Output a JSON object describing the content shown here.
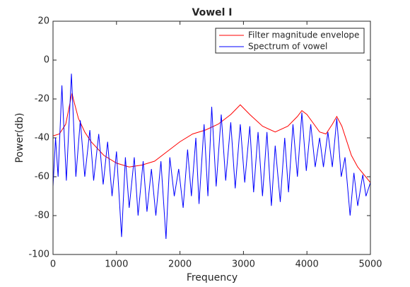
{
  "chart_data": {
    "type": "line",
    "title": "Vowel I",
    "xlabel": "Frequency",
    "ylabel": "Power(db)",
    "xlim": [
      0,
      5000
    ],
    "xticks": [
      0,
      1000,
      2000,
      3000,
      4000,
      5000
    ],
    "ylim": [
      -100,
      20
    ],
    "yticks": [
      20,
      0,
      -20,
      -40,
      -60,
      -80,
      -100
    ],
    "grid": false,
    "legend": "northeast",
    "series": [
      {
        "name": "Filter magnitude envelope",
        "color": "#ff0000",
        "x": [
          0,
          100,
          200,
          280,
          300,
          320,
          400,
          500,
          600,
          800,
          1000,
          1200,
          1400,
          1600,
          1800,
          2000,
          2200,
          2400,
          2600,
          2800,
          2950,
          3100,
          3300,
          3500,
          3700,
          3850,
          3920,
          4000,
          4200,
          4300,
          4400,
          4470,
          4550,
          4700,
          4800,
          5000
        ],
        "values": [
          -39,
          -38,
          -33,
          -20,
          -17,
          -20,
          -30,
          -37,
          -42,
          -49,
          -53,
          -55,
          -54,
          -52,
          -47,
          -42,
          -38,
          -36,
          -33,
          -28,
          -23,
          -28,
          -34,
          -37,
          -34,
          -29,
          -26,
          -28,
          -37,
          -38,
          -33,
          -29,
          -34,
          -49,
          -55,
          -63
        ]
      },
      {
        "name": "Spectrum of vowel",
        "color": "#0000ff",
        "x": [
          0,
          40,
          80,
          140,
          210,
          290,
          360,
          430,
          500,
          580,
          640,
          720,
          790,
          860,
          930,
          1000,
          1080,
          1140,
          1200,
          1280,
          1340,
          1420,
          1480,
          1550,
          1620,
          1700,
          1780,
          1840,
          1910,
          1980,
          2050,
          2120,
          2180,
          2250,
          2300,
          2380,
          2440,
          2500,
          2570,
          2650,
          2720,
          2800,
          2870,
          2950,
          3020,
          3100,
          3160,
          3230,
          3300,
          3370,
          3440,
          3500,
          3580,
          3650,
          3710,
          3780,
          3850,
          3920,
          3990,
          4060,
          4130,
          4200,
          4260,
          4330,
          4400,
          4470,
          4540,
          4600,
          4680,
          4740,
          4800,
          4880,
          4930,
          5000
        ],
        "values": [
          -65,
          -40,
          -60,
          -13,
          -62,
          -7,
          -60,
          -31,
          -60,
          -36,
          -62,
          -38,
          -64,
          -42,
          -70,
          -47,
          -91,
          -50,
          -76,
          -50,
          -80,
          -52,
          -78,
          -56,
          -80,
          -52,
          -92,
          -50,
          -70,
          -56,
          -76,
          -46,
          -70,
          -40,
          -74,
          -33,
          -70,
          -24,
          -65,
          -28,
          -62,
          -32,
          -66,
          -33,
          -63,
          -34,
          -68,
          -37,
          -70,
          -37,
          -75,
          -44,
          -73,
          -40,
          -68,
          -33,
          -60,
          -27,
          -57,
          -33,
          -55,
          -40,
          -55,
          -37,
          -55,
          -30,
          -60,
          -50,
          -80,
          -58,
          -75,
          -59,
          -70,
          -63
        ]
      }
    ]
  }
}
